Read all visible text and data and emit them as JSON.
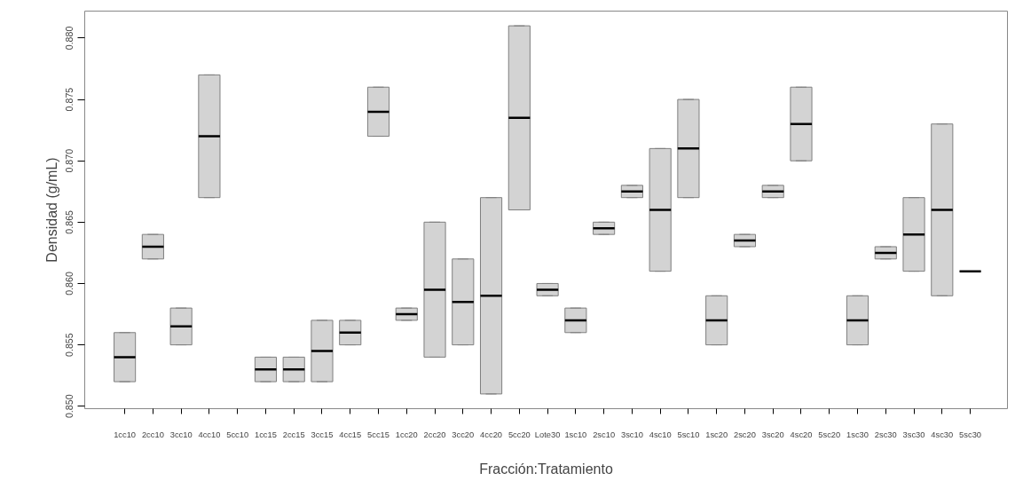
{
  "chart_data": {
    "type": "box",
    "xlabel": "Fracción:Tratamiento",
    "ylabel": "Densidad (g/mL)",
    "color": "#d3d3d3",
    "categories": [
      "1cc10",
      "2cc10",
      "3cc10",
      "4cc10",
      "5cc10",
      "1cc15",
      "2cc15",
      "3cc15",
      "4cc15",
      "5cc15",
      "1cc20",
      "2cc20",
      "3cc20",
      "4cc20",
      "5cc20",
      "Lote30",
      "1sc10",
      "2sc10",
      "3sc10",
      "4sc10",
      "5sc10",
      "1sc20",
      "2sc20",
      "3sc20",
      "4sc20",
      "5sc20",
      "1sc30",
      "2sc30",
      "3sc30",
      "4sc30",
      "5sc30"
    ],
    "boxes": [
      {
        "low": 0.852,
        "q1": 0.852,
        "median": 0.854,
        "q3": 0.856,
        "high": 0.856
      },
      {
        "low": 0.862,
        "q1": 0.862,
        "median": 0.863,
        "q3": 0.864,
        "high": 0.864
      },
      {
        "low": 0.855,
        "q1": 0.855,
        "median": 0.8565,
        "q3": 0.858,
        "high": 0.858
      },
      {
        "low": 0.867,
        "q1": 0.867,
        "median": 0.872,
        "q3": 0.877,
        "high": 0.877
      },
      null,
      {
        "low": 0.852,
        "q1": 0.852,
        "median": 0.853,
        "q3": 0.854,
        "high": 0.854
      },
      {
        "low": 0.852,
        "q1": 0.852,
        "median": 0.853,
        "q3": 0.854,
        "high": 0.854
      },
      {
        "low": 0.852,
        "q1": 0.852,
        "median": 0.8545,
        "q3": 0.857,
        "high": 0.857
      },
      {
        "low": 0.855,
        "q1": 0.855,
        "median": 0.856,
        "q3": 0.857,
        "high": 0.857
      },
      {
        "low": 0.872,
        "q1": 0.872,
        "median": 0.874,
        "q3": 0.876,
        "high": 0.876
      },
      {
        "low": 0.857,
        "q1": 0.857,
        "median": 0.8575,
        "q3": 0.858,
        "high": 0.858
      },
      {
        "low": 0.854,
        "q1": 0.854,
        "median": 0.8595,
        "q3": 0.865,
        "high": 0.865
      },
      {
        "low": 0.855,
        "q1": 0.855,
        "median": 0.8585,
        "q3": 0.862,
        "high": 0.862
      },
      {
        "low": 0.851,
        "q1": 0.851,
        "median": 0.859,
        "q3": 0.867,
        "high": 0.867
      },
      {
        "low": 0.866,
        "q1": 0.866,
        "median": 0.8735,
        "q3": 0.881,
        "high": 0.881
      },
      {
        "low": 0.859,
        "q1": 0.859,
        "median": 0.8595,
        "q3": 0.86,
        "high": 0.86
      },
      {
        "low": 0.856,
        "q1": 0.856,
        "median": 0.857,
        "q3": 0.858,
        "high": 0.858
      },
      {
        "low": 0.864,
        "q1": 0.864,
        "median": 0.8645,
        "q3": 0.865,
        "high": 0.865
      },
      {
        "low": 0.867,
        "q1": 0.867,
        "median": 0.8675,
        "q3": 0.868,
        "high": 0.868
      },
      {
        "low": 0.861,
        "q1": 0.861,
        "median": 0.866,
        "q3": 0.871,
        "high": 0.871
      },
      {
        "low": 0.867,
        "q1": 0.867,
        "median": 0.871,
        "q3": 0.875,
        "high": 0.875
      },
      {
        "low": 0.855,
        "q1": 0.855,
        "median": 0.857,
        "q3": 0.859,
        "high": 0.859
      },
      {
        "low": 0.863,
        "q1": 0.863,
        "median": 0.8635,
        "q3": 0.864,
        "high": 0.864
      },
      {
        "low": 0.867,
        "q1": 0.867,
        "median": 0.8675,
        "q3": 0.868,
        "high": 0.868
      },
      {
        "low": 0.87,
        "q1": 0.87,
        "median": 0.873,
        "q3": 0.876,
        "high": 0.876
      },
      null,
      {
        "low": 0.855,
        "q1": 0.855,
        "median": 0.857,
        "q3": 0.859,
        "high": 0.859
      },
      {
        "low": 0.862,
        "q1": 0.862,
        "median": 0.8625,
        "q3": 0.863,
        "high": 0.863
      },
      {
        "low": 0.861,
        "q1": 0.861,
        "median": 0.864,
        "q3": 0.867,
        "high": 0.867
      },
      {
        "low": 0.859,
        "q1": 0.859,
        "median": 0.866,
        "q3": 0.873,
        "high": 0.873
      },
      {
        "low": 0.861,
        "q1": 0.861,
        "median": 0.861,
        "q3": 0.861,
        "high": 0.861
      }
    ],
    "ylim": [
      0.8498,
      0.8822
    ],
    "yticks": [
      {
        "value": 0.85,
        "label": "0.850"
      },
      {
        "value": 0.855,
        "label": "0.855"
      },
      {
        "value": 0.86,
        "label": "0.860"
      },
      {
        "value": 0.865,
        "label": "0.865"
      },
      {
        "value": 0.87,
        "label": "0.870"
      },
      {
        "value": 0.875,
        "label": "0.875"
      },
      {
        "value": 0.88,
        "label": "0.880"
      }
    ],
    "grid": false
  }
}
